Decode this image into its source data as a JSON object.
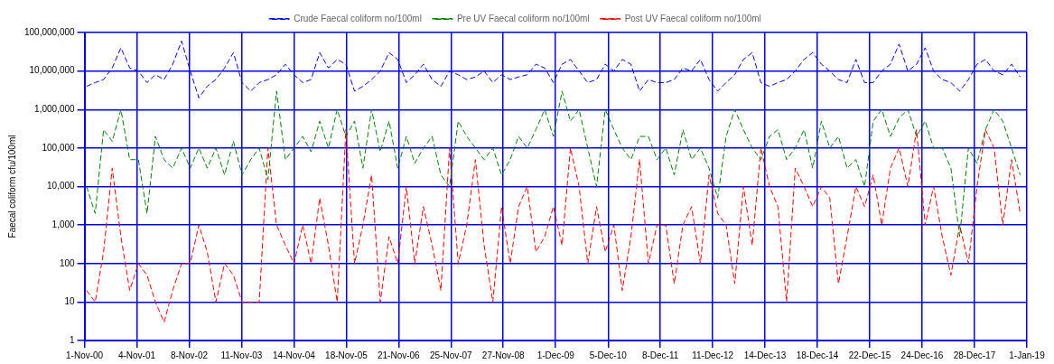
{
  "chart_data": {
    "type": "line",
    "ylabel": "Faecal coliform cfu/100ml",
    "log": "y",
    "grid": true,
    "legend": "top",
    "marker": "none",
    "line_style": "dashed",
    "ylim": [
      1,
      100000000
    ],
    "yticks": [
      1,
      10,
      100,
      {
        "value": 1000,
        "label": "1,000"
      },
      {
        "value": 10000,
        "label": "10,000"
      },
      {
        "value": 100000,
        "label": "100,000"
      },
      {
        "value": 1000000,
        "label": "1,000,000"
      },
      {
        "value": 10000000,
        "label": "10,000,000"
      },
      {
        "value": 100000000,
        "label": "100,000,000"
      }
    ],
    "xlim": [
      "2000-11-01",
      "2019-01-01"
    ],
    "xticks": [
      {
        "value": "2000-11-01",
        "label": "1-Nov-00"
      },
      {
        "value": "2001-11-04",
        "label": "4-Nov-01"
      },
      {
        "value": "2002-11-08",
        "label": "8-Nov-02"
      },
      {
        "value": "2003-11-11",
        "label": "11-Nov-03"
      },
      {
        "value": "2004-11-14",
        "label": "14-Nov-04"
      },
      {
        "value": "2005-11-18",
        "label": "18-Nov-05"
      },
      {
        "value": "2006-11-21",
        "label": "21-Nov-06"
      },
      {
        "value": "2007-11-25",
        "label": "25-Nov-07"
      },
      {
        "value": "2008-11-27",
        "label": "27-Nov-08"
      },
      {
        "value": "2009-12-01",
        "label": "1-Dec-09"
      },
      {
        "value": "2010-12-05",
        "label": "5-Dec-10"
      },
      {
        "value": "2011-12-08",
        "label": "8-Dec-11"
      },
      {
        "value": "2012-12-11",
        "label": "11-Dec-12"
      },
      {
        "value": "2013-12-14",
        "label": "14-Dec-13"
      },
      {
        "value": "2014-12-18",
        "label": "18-Dec-14"
      },
      {
        "value": "2015-12-22",
        "label": "22-Dec-15"
      },
      {
        "value": "2016-12-24",
        "label": "24-Dec-16"
      },
      {
        "value": "2017-12-28",
        "label": "28-Dec-17"
      },
      {
        "value": "2019-01-01",
        "label": "1-Jan-19"
      }
    ],
    "x": [
      "2000-11-15",
      "2001-01-15",
      "2001-03-15",
      "2001-05-15",
      "2001-07-15",
      "2001-09-15",
      "2001-11-15",
      "2002-01-15",
      "2002-03-15",
      "2002-05-15",
      "2002-07-15",
      "2002-09-15",
      "2002-11-15",
      "2003-01-15",
      "2003-03-15",
      "2003-05-15",
      "2003-07-15",
      "2003-09-15",
      "2003-11-15",
      "2004-01-15",
      "2004-03-15",
      "2004-05-15",
      "2004-07-15",
      "2004-09-15",
      "2004-11-15",
      "2005-01-15",
      "2005-03-15",
      "2005-05-15",
      "2005-07-15",
      "2005-09-15",
      "2005-11-15",
      "2006-01-15",
      "2006-03-15",
      "2006-05-15",
      "2006-07-15",
      "2006-09-15",
      "2006-11-15",
      "2007-01-15",
      "2007-03-15",
      "2007-05-15",
      "2007-07-15",
      "2007-09-15",
      "2007-11-15",
      "2008-01-15",
      "2008-03-15",
      "2008-05-15",
      "2008-07-15",
      "2008-09-15",
      "2008-11-15",
      "2009-01-15",
      "2009-03-15",
      "2009-05-15",
      "2009-07-15",
      "2009-09-15",
      "2009-11-15",
      "2010-01-15",
      "2010-03-15",
      "2010-05-15",
      "2010-07-15",
      "2010-09-15",
      "2010-11-15",
      "2011-01-15",
      "2011-03-15",
      "2011-05-15",
      "2011-07-15",
      "2011-09-15",
      "2011-11-15",
      "2012-01-15",
      "2012-03-15",
      "2012-05-15",
      "2012-07-15",
      "2012-09-15",
      "2012-11-15",
      "2013-01-15",
      "2013-03-15",
      "2013-05-15",
      "2013-07-15",
      "2013-09-15",
      "2013-11-15",
      "2014-01-15",
      "2014-03-15",
      "2014-05-15",
      "2014-07-15",
      "2014-09-15",
      "2014-11-15",
      "2015-01-15",
      "2015-03-15",
      "2015-05-15",
      "2015-07-15",
      "2015-09-15",
      "2015-11-15",
      "2016-01-15",
      "2016-03-15",
      "2016-05-15",
      "2016-07-15",
      "2016-09-15",
      "2016-11-15",
      "2017-01-15",
      "2017-03-15",
      "2017-05-15",
      "2017-07-15",
      "2017-09-15",
      "2017-11-15",
      "2018-01-15",
      "2018-03-15",
      "2018-05-15",
      "2018-07-15",
      "2018-09-15",
      "2018-11-15"
    ],
    "series": [
      {
        "name": "Crude Faecal coliform no/100ml",
        "color": "#0000ff",
        "values": [
          4000000,
          5000000,
          6000000,
          12000000,
          40000000,
          12000000,
          10000000,
          5000000,
          8000000,
          6000000,
          15000000,
          60000000,
          10000000,
          2000000,
          4000000,
          6000000,
          12000000,
          30000000,
          5000000,
          3000000,
          5000000,
          6000000,
          8000000,
          15000000,
          8000000,
          5000000,
          6000000,
          30000000,
          12000000,
          20000000,
          15000000,
          3000000,
          4000000,
          6000000,
          10000000,
          30000000,
          20000000,
          5000000,
          8000000,
          15000000,
          6000000,
          4000000,
          10000000,
          8000000,
          6000000,
          7000000,
          10000000,
          5000000,
          8000000,
          6000000,
          7000000,
          8000000,
          15000000,
          12000000,
          5000000,
          15000000,
          20000000,
          10000000,
          5000000,
          6000000,
          15000000,
          10000000,
          20000000,
          15000000,
          3000000,
          6000000,
          5000000,
          5000000,
          6000000,
          12000000,
          10000000,
          20000000,
          6000000,
          3000000,
          5000000,
          8000000,
          20000000,
          30000000,
          5000000,
          4000000,
          5000000,
          6000000,
          10000000,
          20000000,
          30000000,
          15000000,
          10000000,
          6000000,
          5000000,
          20000000,
          5000000,
          5000000,
          10000000,
          15000000,
          50000000,
          10000000,
          15000000,
          40000000,
          10000000,
          6000000,
          5000000,
          3000000,
          6000000,
          15000000,
          20000000,
          10000000,
          8000000,
          15000000,
          7000000
        ]
      },
      {
        "name": "Pre UV Faecal coliform no/100ml",
        "color": "#008000",
        "values": [
          10000,
          2000,
          300000,
          150000,
          1000000,
          50000,
          50000,
          2000,
          200000,
          50000,
          30000,
          100000,
          30000,
          100000,
          30000,
          100000,
          20000,
          150000,
          20000,
          50000,
          100000,
          15000,
          3000000,
          50000,
          100000,
          200000,
          80000,
          500000,
          100000,
          1000000,
          200000,
          500000,
          30000,
          1000000,
          80000,
          500000,
          30000,
          200000,
          40000,
          100000,
          200000,
          20000,
          10000,
          500000,
          200000,
          100000,
          50000,
          100000,
          20000,
          50000,
          200000,
          100000,
          300000,
          1000000,
          200000,
          3000000,
          500000,
          1000000,
          100000,
          10000,
          1000000,
          300000,
          100000,
          50000,
          200000,
          200000,
          50000,
          100000,
          20000,
          300000,
          50000,
          100000,
          30000,
          5000,
          200000,
          1000000,
          300000,
          100000,
          50000,
          200000,
          300000,
          50000,
          100000,
          300000,
          30000,
          500000,
          100000,
          200000,
          30000,
          50000,
          10000,
          500000,
          1000000,
          200000,
          600000,
          1000000,
          200000,
          500000,
          100000,
          100000,
          30000,
          500,
          100000,
          40000,
          300000,
          1000000,
          500000,
          100000,
          20000
        ]
      },
      {
        "name": "Post UV Faecal coliform no/100ml",
        "color": "#ff0000",
        "values": [
          20,
          10,
          200,
          30000,
          500,
          20,
          100,
          50,
          10,
          3,
          20,
          100,
          100,
          1000,
          200,
          10,
          100,
          50,
          10,
          10,
          10,
          100000,
          1000,
          300,
          100,
          1000,
          100,
          5000,
          300,
          10,
          300000,
          100,
          1000,
          20000,
          10,
          500,
          100,
          10000,
          100,
          3000,
          300,
          20,
          100000,
          100,
          1000,
          50000,
          300,
          10,
          3000,
          100,
          3000,
          10000,
          200,
          500,
          3000,
          300,
          100000,
          10000,
          100,
          3000,
          200,
          1000,
          20,
          500,
          50000,
          100,
          1000,
          1000,
          30,
          1000,
          3000,
          100,
          20000,
          2000,
          1000,
          30,
          10000,
          300,
          100000,
          10000,
          3000,
          10,
          30000,
          10000,
          3000,
          10000,
          5000,
          30,
          500,
          10000,
          3000,
          20000,
          1000,
          30000,
          100000,
          10000,
          300000,
          1000,
          10000,
          500,
          50,
          1000,
          100,
          10000,
          300000,
          100000,
          1000,
          50000,
          2000
        ]
      }
    ]
  }
}
